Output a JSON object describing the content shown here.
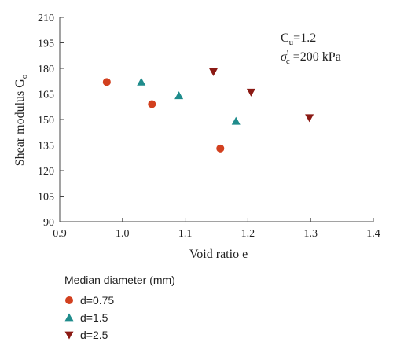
{
  "chart_data": {
    "type": "scatter",
    "xlabel": "Void ratio e",
    "ylabel": "Shear modulus G",
    "ylabel_subscript": "o",
    "xlim": [
      0.9,
      1.4
    ],
    "ylim": [
      90,
      210
    ],
    "xticks": [
      "0.9",
      "1.0",
      "1.1",
      "1.2",
      "1.3",
      "1.4"
    ],
    "yticks": [
      "90",
      "105",
      "120",
      "135",
      "150",
      "165",
      "180",
      "195",
      "210"
    ],
    "grid": false,
    "annotations": [
      {
        "base": "C",
        "sub": "u",
        "rest": "=1.2"
      },
      {
        "base": "σ",
        "sup": "'",
        "sub": "c",
        "rest": " =200 kPa"
      }
    ],
    "legend": {
      "title": "Median diameter (mm)",
      "placement": "below"
    },
    "series": [
      {
        "name": "d=0.75",
        "marker": "circle",
        "color": "#d2401f",
        "points": [
          [
            0.975,
            172
          ],
          [
            1.047,
            159
          ],
          [
            1.156,
            133
          ]
        ]
      },
      {
        "name": "d=1.5",
        "marker": "triangle-up",
        "color": "#1f8c8c",
        "points": [
          [
            1.03,
            172
          ],
          [
            1.09,
            164
          ],
          [
            1.181,
            149
          ]
        ]
      },
      {
        "name": "d=2.5",
        "marker": "triangle-down",
        "color": "#8b1a14",
        "points": [
          [
            1.145,
            178
          ],
          [
            1.205,
            166
          ],
          [
            1.298,
            151
          ]
        ]
      }
    ]
  }
}
